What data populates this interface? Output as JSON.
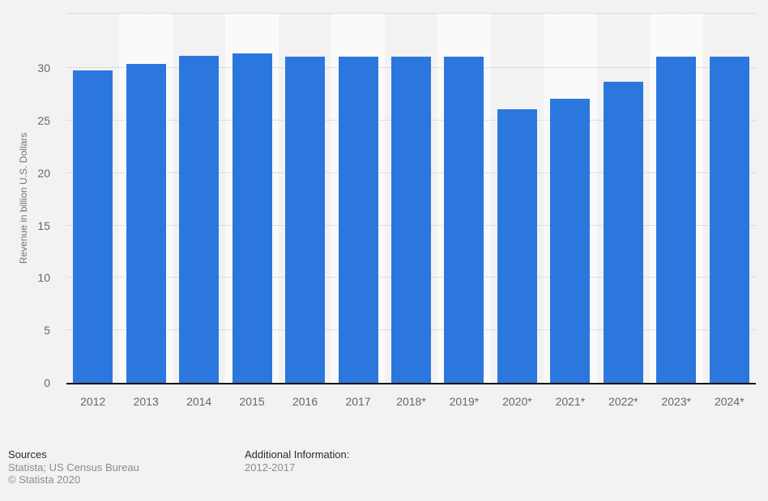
{
  "chart_data": {
    "type": "bar",
    "title": "",
    "xlabel": "",
    "ylabel": "Revenue in billion U.S. Dollars",
    "categories": [
      "2012",
      "2013",
      "2014",
      "2015",
      "2016",
      "2017",
      "2018*",
      "2019*",
      "2020*",
      "2021*",
      "2022*",
      "2023*",
      "2024*"
    ],
    "values": [
      29.8,
      30.4,
      31.2,
      31.4,
      31.1,
      31.1,
      31.1,
      31.1,
      26.1,
      27.1,
      28.7,
      31.1,
      31.1
    ],
    "ylim": [
      0,
      35.25
    ],
    "yticks": [
      0,
      5,
      10,
      15,
      20,
      25,
      30
    ],
    "yticklabels": [
      "0",
      "5",
      "10",
      "15",
      "20",
      "25",
      "30"
    ],
    "grid": "horizontal dotted lines every 5 units plus unlabeled top boundary line",
    "legend": "none",
    "colors": {
      "bar": "#2c77dd",
      "background": "#f2f2f2",
      "column_stripe_light": "#fafafa",
      "gridline": "#c6c6c6",
      "axis_line": "#111111",
      "tick_text": "#666666",
      "axis_title_text": "#767676"
    }
  },
  "footer": {
    "sources_heading": "Sources",
    "sources_line1": "Statista; US Census Bureau",
    "sources_line2": "© Statista 2020",
    "additional_heading": "Additional Information:",
    "additional_line1": "2012-2017"
  }
}
